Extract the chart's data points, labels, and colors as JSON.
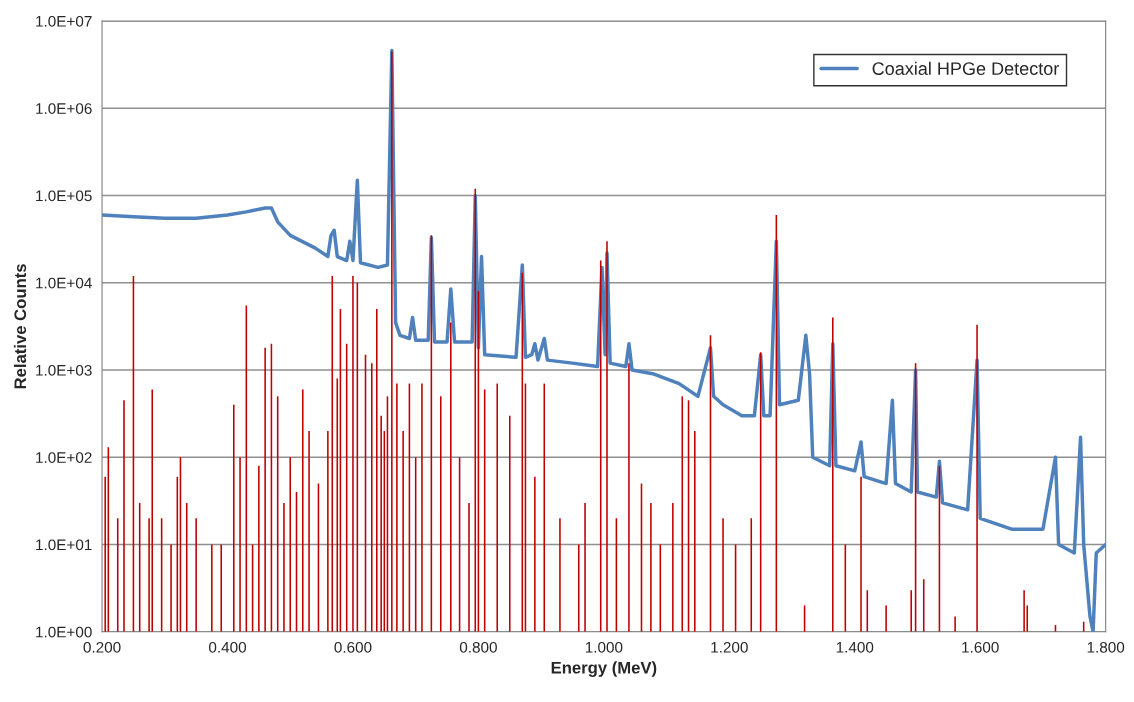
{
  "chart_data": {
    "type": "line",
    "xlabel": "Energy (MeV)",
    "ylabel": "Relative Counts",
    "log": "y",
    "grid": "y",
    "legend": "top right",
    "xlim": [
      0.2,
      1.8
    ],
    "xticks": [
      {
        "value": 0.2,
        "label": "0.200"
      },
      {
        "value": 0.4,
        "label": "0.400"
      },
      {
        "value": 0.6,
        "label": "0.600"
      },
      {
        "value": 0.8,
        "label": "0.800"
      },
      {
        "value": 1.0,
        "label": "1.000"
      },
      {
        "value": 1.2,
        "label": "1.200"
      },
      {
        "value": 1.4,
        "label": "1.400"
      },
      {
        "value": 1.6,
        "label": "1.600"
      },
      {
        "value": 1.8,
        "label": "1.800"
      }
    ],
    "ylim": [
      1,
      10000000
    ],
    "yticks": [
      {
        "value": 1,
        "label": "1.0E+00"
      },
      {
        "value": 10,
        "label": "1.0E+01"
      },
      {
        "value": 100,
        "label": "1.0E+02"
      },
      {
        "value": 1000,
        "label": "1.0E+03"
      },
      {
        "value": 10000,
        "label": "1.0E+04"
      },
      {
        "value": 100000,
        "label": "1.0E+05"
      },
      {
        "value": 1000000,
        "label": "1.0E+06"
      },
      {
        "value": 10000000,
        "label": "1.0E+07"
      }
    ],
    "series": [
      {
        "type": "bar",
        "color": "#c00000",
        "x": [
          0.205,
          0.21,
          0.225,
          0.235,
          0.25,
          0.26,
          0.275,
          0.28,
          0.295,
          0.31,
          0.32,
          0.325,
          0.335,
          0.35,
          0.375,
          0.39,
          0.41,
          0.42,
          0.43,
          0.44,
          0.45,
          0.46,
          0.47,
          0.48,
          0.49,
          0.5,
          0.51,
          0.52,
          0.53,
          0.545,
          0.56,
          0.567,
          0.575,
          0.58,
          0.59,
          0.6,
          0.607,
          0.62,
          0.63,
          0.638,
          0.645,
          0.65,
          0.655,
          0.662,
          0.67,
          0.68,
          0.69,
          0.7,
          0.71,
          0.725,
          0.74,
          0.756,
          0.77,
          0.785,
          0.795,
          0.8,
          0.81,
          0.83,
          0.85,
          0.87,
          0.875,
          0.89,
          0.905,
          0.93,
          0.96,
          0.97,
          0.995,
          1.005,
          1.02,
          1.04,
          1.06,
          1.075,
          1.09,
          1.11,
          1.125,
          1.135,
          1.145,
          1.17,
          1.19,
          1.21,
          1.235,
          1.25,
          1.275,
          1.32,
          1.365,
          1.385,
          1.41,
          1.42,
          1.45,
          1.49,
          1.497,
          1.51,
          1.535,
          1.56,
          1.595,
          1.67,
          1.675,
          1.72,
          1.765
        ],
        "values": [
          60,
          130,
          20,
          450,
          12000,
          30,
          20,
          600,
          20,
          10,
          60,
          100,
          30,
          20,
          10,
          10,
          400,
          100,
          5500,
          10,
          80,
          1800,
          2000,
          500,
          30,
          100,
          40,
          600,
          200,
          50,
          200,
          12000,
          800,
          5000,
          2000,
          12000,
          10000,
          1500,
          1200,
          5000,
          300,
          200,
          500,
          4500000,
          700,
          200,
          700,
          100,
          700,
          35000,
          500,
          3500,
          100,
          30,
          120000,
          8000,
          600,
          700,
          300,
          13000,
          700,
          60,
          700,
          20,
          10,
          30,
          18000,
          30000,
          20,
          1200,
          50,
          30,
          10,
          30,
          500,
          450,
          200,
          2500,
          20,
          10,
          20,
          1600,
          60000,
          2,
          4000,
          10,
          60,
          3,
          2,
          3,
          1200,
          4,
          80,
          1.5,
          3300,
          3,
          2,
          1.2,
          1.3
        ]
      },
      {
        "name": "Coaxial HPGe Detector",
        "color": "#4f81bd",
        "x": [
          0.2,
          0.25,
          0.3,
          0.35,
          0.4,
          0.43,
          0.46,
          0.47,
          0.48,
          0.5,
          0.54,
          0.56,
          0.565,
          0.57,
          0.575,
          0.59,
          0.595,
          0.6,
          0.607,
          0.612,
          0.64,
          0.655,
          0.662,
          0.668,
          0.675,
          0.69,
          0.695,
          0.7,
          0.72,
          0.725,
          0.73,
          0.75,
          0.756,
          0.762,
          0.79,
          0.795,
          0.8,
          0.805,
          0.81,
          0.86,
          0.87,
          0.875,
          0.885,
          0.89,
          0.895,
          0.905,
          0.91,
          0.95,
          0.99,
          0.997,
          1.002,
          1.005,
          1.01,
          1.035,
          1.04,
          1.045,
          1.08,
          1.12,
          1.15,
          1.17,
          1.175,
          1.19,
          1.22,
          1.24,
          1.25,
          1.255,
          1.265,
          1.275,
          1.28,
          1.31,
          1.322,
          1.328,
          1.333,
          1.36,
          1.365,
          1.37,
          1.4,
          1.41,
          1.415,
          1.45,
          1.46,
          1.465,
          1.49,
          1.497,
          1.5,
          1.53,
          1.535,
          1.54,
          1.58,
          1.595,
          1.6,
          1.65,
          1.7,
          1.72,
          1.725,
          1.75,
          1.76,
          1.765,
          1.775,
          1.78,
          1.785,
          1.8
        ],
        "values": [
          60000,
          57000,
          55000,
          55000,
          60000,
          65000,
          72000,
          72000,
          50000,
          35000,
          25000,
          20000,
          35000,
          40000,
          20000,
          18000,
          30000,
          18000,
          150000,
          17000,
          15000,
          16000,
          4600000,
          3500,
          2500,
          2300,
          4000,
          2200,
          2200,
          33000,
          2100,
          2100,
          8500,
          2100,
          2100,
          100000,
          1800,
          20000,
          1500,
          1400,
          16000,
          1400,
          1500,
          2000,
          1300,
          2300,
          1300,
          1200,
          1100,
          15000,
          1500,
          22000,
          1200,
          1100,
          2000,
          1000,
          900,
          700,
          500,
          1800,
          500,
          400,
          300,
          300,
          1500,
          300,
          300,
          30000,
          400,
          450,
          2500,
          900,
          100,
          80,
          2000,
          80,
          70,
          150,
          60,
          50,
          450,
          50,
          40,
          1000,
          40,
          35,
          90,
          30,
          25,
          1300,
          20,
          15,
          15,
          100,
          10,
          8,
          170,
          10,
          1.5,
          1,
          8,
          10
        ]
      }
    ]
  }
}
